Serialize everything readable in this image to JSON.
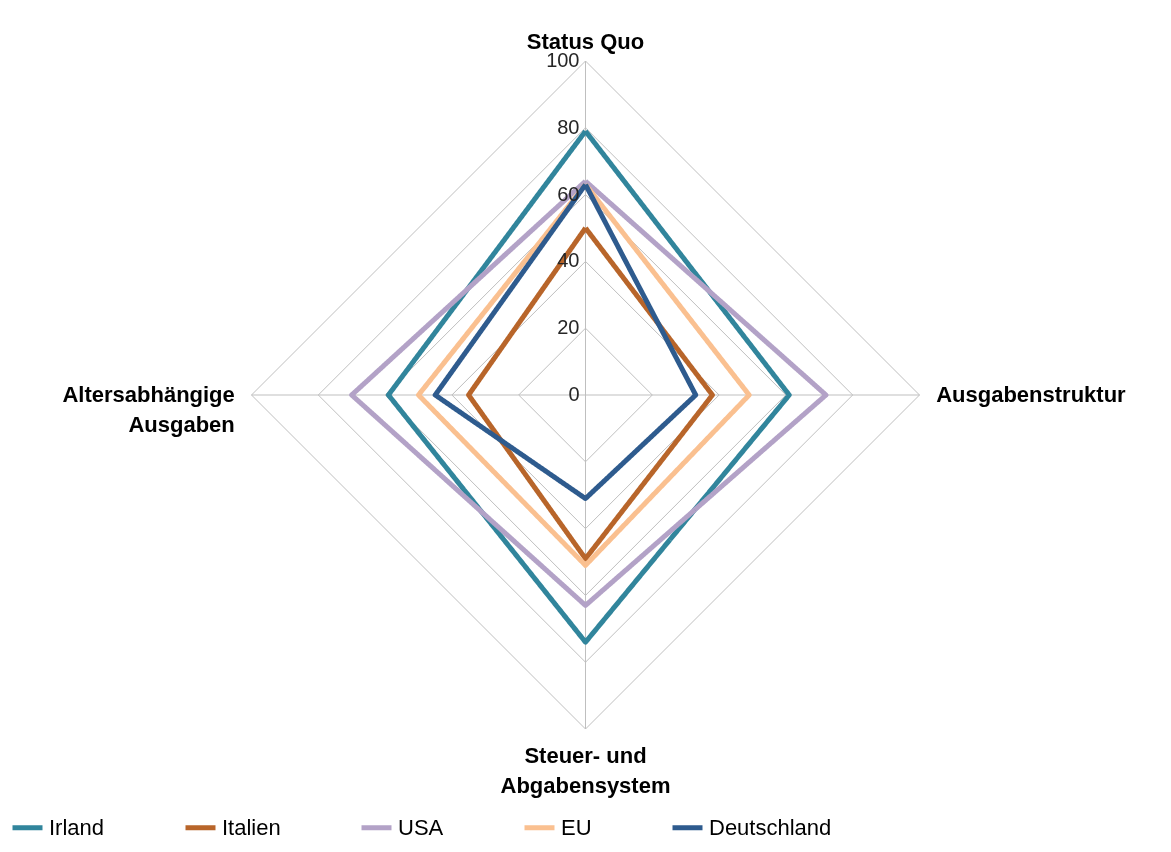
{
  "chart_data": {
    "type": "radar",
    "categories": [
      "Status Quo",
      "Ausgabenstruktur",
      "Steuer- und Abgabensystem",
      "Altersabhängige Ausgaben"
    ],
    "ylim": [
      0,
      100
    ],
    "yticks": [
      0,
      20,
      40,
      60,
      80,
      100
    ],
    "grid": true,
    "legend": "bottom",
    "line_style": "solid",
    "marker": "none",
    "series": [
      {
        "name": "Irland",
        "color": "#31859c",
        "values": [
          79,
          61,
          74,
          59
        ]
      },
      {
        "name": "Italien",
        "color": "#b8652a",
        "values": [
          50,
          38,
          49,
          35
        ]
      },
      {
        "name": "USA",
        "color": "#b3a2c7",
        "values": [
          64,
          72,
          63,
          70
        ]
      },
      {
        "name": "EU",
        "color": "#fac090",
        "values": [
          63,
          49,
          51,
          50
        ]
      },
      {
        "name": "Deutschland",
        "color": "#2e5b8e",
        "values": [
          63,
          33,
          31,
          45
        ]
      }
    ]
  }
}
